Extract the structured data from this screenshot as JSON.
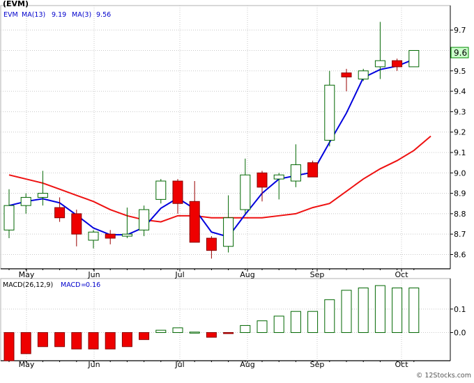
{
  "chart_data": [
    {
      "type": "candlestick",
      "title": "(EVM)",
      "legend": [
        {
          "label": "EVM",
          "color": "#0000cc"
        },
        {
          "label": "MA(13)",
          "value": "9.19",
          "color": "#0000cc"
        },
        {
          "label": "MA(3)",
          "value": "9.56",
          "color": "#0000cc"
        }
      ],
      "price_tag": "9.6",
      "x_ticks": [
        "May",
        "Jun",
        "Jul",
        "Aug",
        "Sep",
        "Oct"
      ],
      "y_ticks": [
        "8.6",
        "8.7",
        "8.8",
        "8.9",
        "9.0",
        "9.1",
        "9.2",
        "9.3",
        "9.4",
        "9.5",
        "9.6",
        "9.7"
      ],
      "ylim": [
        8.53,
        9.82
      ],
      "grid": true,
      "weeks": 25,
      "candles": [
        {
          "o": 8.72,
          "h": 8.92,
          "l": 8.68,
          "c": 8.84
        },
        {
          "o": 8.84,
          "h": 8.9,
          "l": 8.8,
          "c": 8.88
        },
        {
          "o": 8.88,
          "h": 9.01,
          "l": 8.84,
          "c": 8.9
        },
        {
          "o": 8.83,
          "h": 8.88,
          "l": 8.76,
          "c": 8.78
        },
        {
          "o": 8.8,
          "h": 8.82,
          "l": 8.64,
          "c": 8.7
        },
        {
          "o": 8.67,
          "h": 8.72,
          "l": 8.63,
          "c": 8.71
        },
        {
          "o": 8.7,
          "h": 8.72,
          "l": 8.65,
          "c": 8.68
        },
        {
          "o": 8.69,
          "h": 8.83,
          "l": 8.68,
          "c": 8.7
        },
        {
          "o": 8.72,
          "h": 8.84,
          "l": 8.69,
          "c": 8.82
        },
        {
          "o": 8.87,
          "h": 8.97,
          "l": 8.85,
          "c": 8.96
        },
        {
          "o": 8.96,
          "h": 8.97,
          "l": 8.8,
          "c": 8.85
        },
        {
          "o": 8.86,
          "h": 8.96,
          "l": 8.66,
          "c": 8.66
        },
        {
          "o": 8.68,
          "h": 8.69,
          "l": 8.58,
          "c": 8.62
        },
        {
          "o": 8.64,
          "h": 8.89,
          "l": 8.61,
          "c": 8.78
        },
        {
          "o": 8.82,
          "h": 9.07,
          "l": 8.8,
          "c": 8.99
        },
        {
          "o": 9.0,
          "h": 9.01,
          "l": 8.86,
          "c": 8.93
        },
        {
          "o": 8.97,
          "h": 9.0,
          "l": 8.87,
          "c": 8.99
        },
        {
          "o": 8.96,
          "h": 9.14,
          "l": 8.93,
          "c": 9.04
        },
        {
          "o": 9.05,
          "h": 9.06,
          "l": 8.98,
          "c": 8.98
        },
        {
          "o": 9.16,
          "h": 9.5,
          "l": 9.13,
          "c": 9.43
        },
        {
          "o": 9.49,
          "h": 9.51,
          "l": 9.4,
          "c": 9.47
        },
        {
          "o": 9.46,
          "h": 9.51,
          "l": 9.45,
          "c": 9.5
        },
        {
          "o": 9.52,
          "h": 9.74,
          "l": 9.46,
          "c": 9.55
        },
        {
          "o": 9.55,
          "h": 9.56,
          "l": 9.5,
          "c": 9.52
        },
        {
          "o": 9.52,
          "h": 9.6,
          "l": 9.52,
          "c": 9.6
        }
      ],
      "ma13": [
        8.99,
        8.97,
        8.95,
        8.92,
        8.89,
        8.86,
        8.82,
        8.79,
        8.77,
        8.76,
        8.79,
        8.79,
        8.78,
        8.78,
        8.78,
        8.78,
        8.79,
        8.8,
        8.83,
        8.85,
        8.91,
        8.97,
        9.02,
        9.06,
        9.11,
        9.18
      ]
    },
    {
      "type": "bar",
      "title": "MACD(26,12,9)",
      "legend": [
        {
          "label": "MACD",
          "value": "0.16"
        }
      ],
      "x_ticks": [
        "May",
        "Jun",
        "Jul",
        "Aug",
        "Sep",
        "Oct"
      ],
      "y_ticks": [
        "0.0",
        "0.1"
      ],
      "ylim": [
        -0.12,
        0.23
      ],
      "values": [
        -0.12,
        -0.09,
        -0.06,
        -0.06,
        -0.07,
        -0.07,
        -0.07,
        -0.06,
        -0.03,
        0.01,
        0.02,
        0.002,
        -0.02,
        -0.003,
        0.03,
        0.05,
        0.07,
        0.09,
        0.09,
        0.14,
        0.18,
        0.19,
        0.2,
        0.19,
        0.19
      ]
    }
  ],
  "watermark": "© 12Stocks.com"
}
